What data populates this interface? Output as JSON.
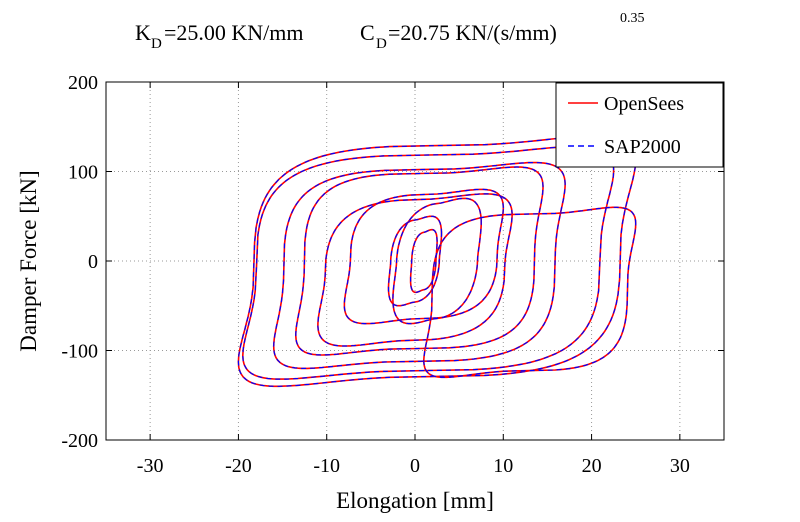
{
  "chart_data": {
    "type": "line",
    "title": {
      "k_symbol": "K",
      "k_sub": "D",
      "k_value": "=25.00 KN/mm",
      "c_symbol": "C",
      "c_sub": "D",
      "c_value": "=20.75 KN/(s/mm)",
      "c_exponent": "0.35"
    },
    "xlabel": "Elongation [mm]",
    "ylabel": "Damper Force [kN]",
    "xlim": [
      -35,
      35
    ],
    "ylim": [
      -200,
      200
    ],
    "xticks": [
      -30,
      -20,
      -10,
      0,
      10,
      20,
      30
    ],
    "yticks": [
      -200,
      -100,
      0,
      100,
      200
    ],
    "xtick_labels": [
      "-30",
      "-20",
      "-10",
      "0",
      "10",
      "20",
      "30"
    ],
    "ytick_labels": [
      "-200",
      "-100",
      "0",
      "100",
      "200"
    ],
    "grid": true,
    "legend_position": "top-right",
    "legend": [
      {
        "label": "OpenSees",
        "color": "#ff0000",
        "style": "solid"
      },
      {
        "label": "SAP2000",
        "color": "#0000ff",
        "style": "dashed"
      }
    ],
    "hysteresis_loops": [
      {
        "center_x": 2.5,
        "center_y": 0,
        "amp_x": 22.5,
        "amp_y": 140,
        "phase": 0.62,
        "shape": 5
      },
      {
        "center_x": 1.5,
        "center_y": -2,
        "amp_x": 21,
        "amp_y": 130,
        "phase": 0.6,
        "shape": 5
      },
      {
        "center_x": 0.5,
        "center_y": -5,
        "amp_x": 16.5,
        "amp_y": 115,
        "phase": 0.58,
        "shape": 5
      },
      {
        "center_x": 0.5,
        "center_y": 0,
        "amp_x": 14,
        "amp_y": 105,
        "phase": 0.58,
        "shape": 5
      },
      {
        "center_x": 0.0,
        "center_y": -10,
        "amp_x": 11,
        "amp_y": 85,
        "phase": 0.55,
        "shape": 4
      },
      {
        "center_x": 1.0,
        "center_y": 5,
        "amp_x": 9,
        "amp_y": 75,
        "phase": 0.55,
        "shape": 4
      },
      {
        "center_x": 2.5,
        "center_y": 0,
        "amp_x": 5,
        "amp_y": 70,
        "phase": 0.5,
        "shape": 3
      },
      {
        "center_x": 0.0,
        "center_y": 0,
        "amp_x": 3,
        "amp_y": 50,
        "phase": 0.5,
        "shape": 3
      },
      {
        "center_x": 1.0,
        "center_y": 0,
        "amp_x": 1.5,
        "amp_y": 35,
        "phase": 0.5,
        "shape": 3
      },
      {
        "center_x": 13.0,
        "center_y": -35,
        "amp_x": 12,
        "amp_y": 95,
        "phase": 0.62,
        "shape": 5
      }
    ]
  }
}
